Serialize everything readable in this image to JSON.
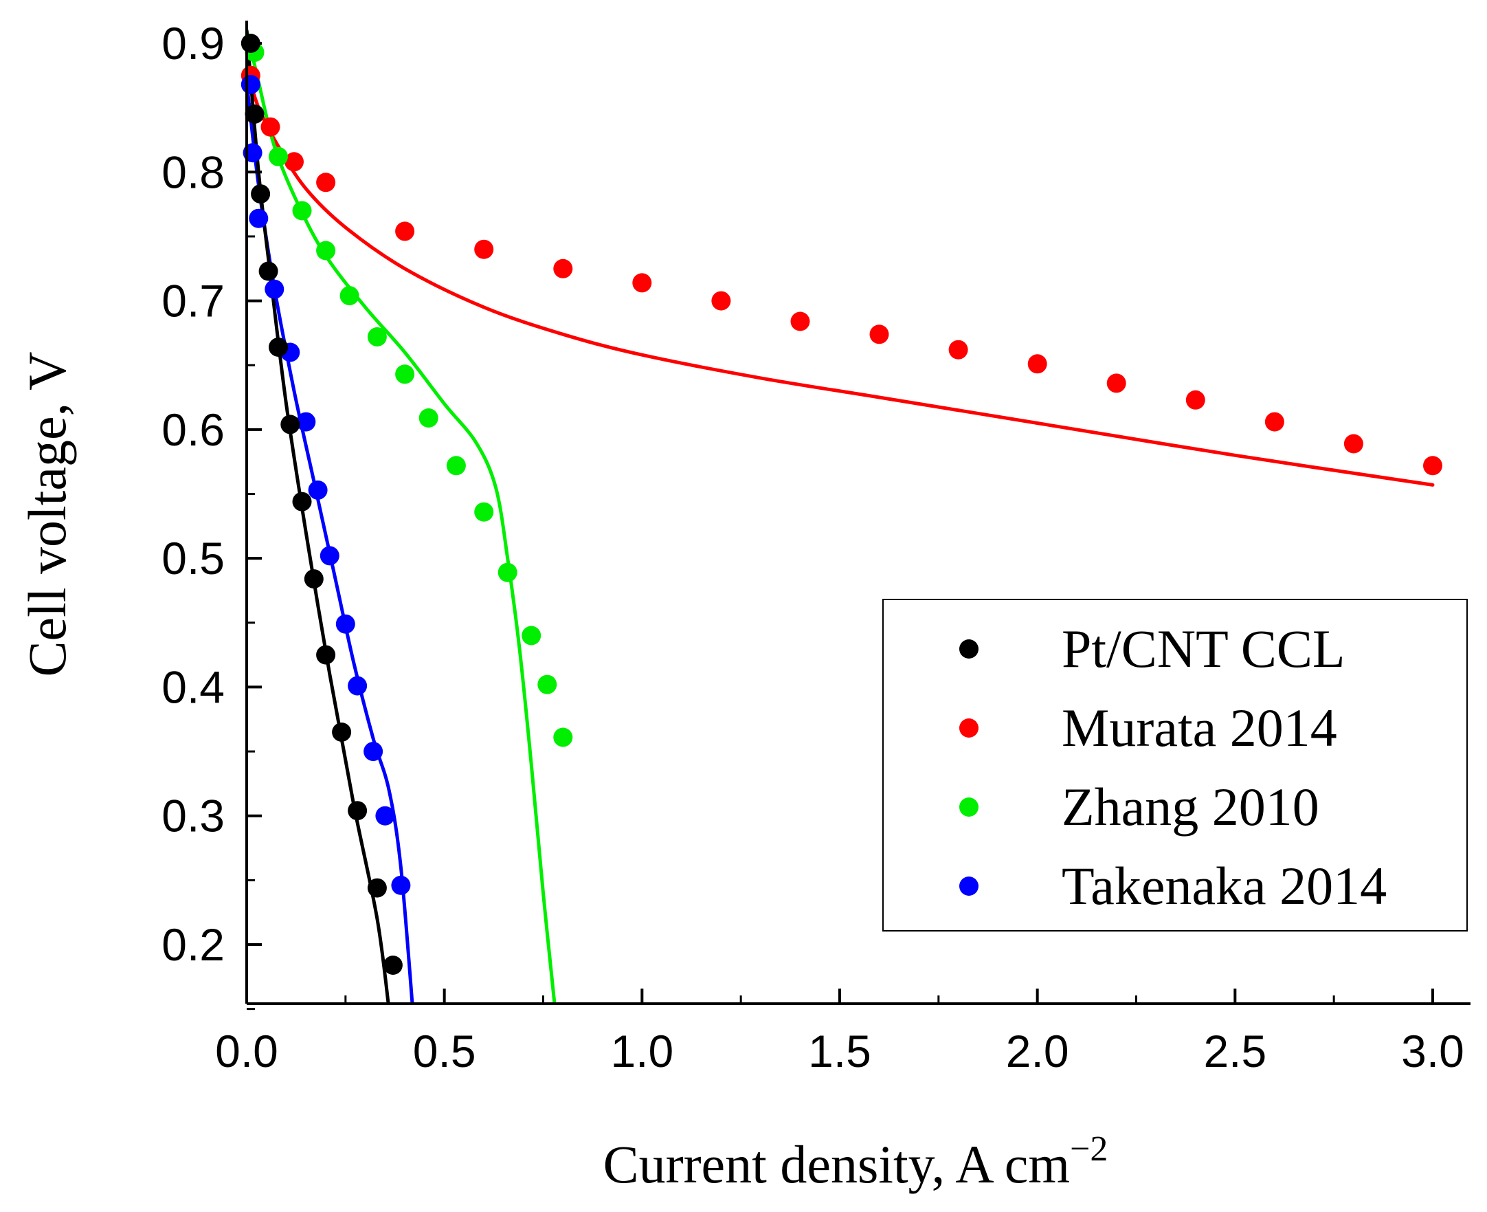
{
  "chart_data": {
    "type": "scatter",
    "title": "",
    "xlabel": "Current density, A cm",
    "xlabel_superscript": "−2",
    "ylabel": "Cell voltage, V",
    "xlim": [
      0.0,
      3.1
    ],
    "ylim": [
      0.15,
      0.91
    ],
    "xticks": [
      0.0,
      0.5,
      1.0,
      1.5,
      2.0,
      2.5,
      3.0
    ],
    "xtick_labels": [
      "0.0",
      "0.5",
      "1.0",
      "1.5",
      "2.0",
      "2.5",
      "3.0"
    ],
    "yticks": [
      0.2,
      0.3,
      0.4,
      0.5,
      0.6,
      0.7,
      0.8,
      0.9
    ],
    "ytick_labels": [
      "0.2",
      "0.3",
      "0.4",
      "0.5",
      "0.6",
      "0.7",
      "0.8",
      "0.9"
    ],
    "legend_position": "right",
    "series": [
      {
        "name": "Pt/CNT CCL",
        "color": "#000000",
        "points": [
          [
            0.01,
            0.9
          ],
          [
            0.02,
            0.845
          ],
          [
            0.035,
            0.783
          ],
          [
            0.055,
            0.723
          ],
          [
            0.08,
            0.664
          ],
          [
            0.11,
            0.604
          ],
          [
            0.14,
            0.544
          ],
          [
            0.17,
            0.484
          ],
          [
            0.2,
            0.425
          ],
          [
            0.24,
            0.365
          ],
          [
            0.28,
            0.304
          ],
          [
            0.33,
            0.244
          ],
          [
            0.37,
            0.184
          ]
        ],
        "fit": [
          [
            0.0,
            0.91
          ],
          [
            0.03,
            0.8
          ],
          [
            0.06,
            0.72
          ],
          [
            0.1,
            0.62
          ],
          [
            0.15,
            0.52
          ],
          [
            0.21,
            0.41
          ],
          [
            0.27,
            0.31
          ],
          [
            0.33,
            0.22
          ],
          [
            0.36,
            0.15
          ]
        ]
      },
      {
        "name": "Murata 2014",
        "color": "#ff0000",
        "points": [
          [
            0.01,
            0.875
          ],
          [
            0.06,
            0.835
          ],
          [
            0.12,
            0.808
          ],
          [
            0.2,
            0.792
          ],
          [
            0.4,
            0.754
          ],
          [
            0.6,
            0.74
          ],
          [
            0.8,
            0.725
          ],
          [
            1.0,
            0.714
          ],
          [
            1.2,
            0.7
          ],
          [
            1.4,
            0.684
          ],
          [
            1.6,
            0.674
          ],
          [
            1.8,
            0.662
          ],
          [
            2.0,
            0.651
          ],
          [
            2.2,
            0.636
          ],
          [
            2.4,
            0.623
          ],
          [
            2.6,
            0.606
          ],
          [
            2.8,
            0.589
          ],
          [
            3.0,
            0.572
          ]
        ],
        "fit": [
          [
            0.0,
            0.88
          ],
          [
            0.03,
            0.85
          ],
          [
            0.08,
            0.82
          ],
          [
            0.15,
            0.787
          ],
          [
            0.25,
            0.757
          ],
          [
            0.4,
            0.725
          ],
          [
            0.6,
            0.695
          ],
          [
            0.8,
            0.674
          ],
          [
            1.0,
            0.658
          ],
          [
            1.3,
            0.64
          ],
          [
            1.6,
            0.625
          ],
          [
            2.0,
            0.605
          ],
          [
            2.5,
            0.58
          ],
          [
            3.0,
            0.557
          ]
        ]
      },
      {
        "name": "Zhang 2010",
        "color": "#00ee00",
        "points": [
          [
            0.02,
            0.893
          ],
          [
            0.08,
            0.812
          ],
          [
            0.14,
            0.77
          ],
          [
            0.2,
            0.739
          ],
          [
            0.26,
            0.704
          ],
          [
            0.33,
            0.672
          ],
          [
            0.4,
            0.643
          ],
          [
            0.46,
            0.609
          ],
          [
            0.53,
            0.572
          ],
          [
            0.6,
            0.536
          ],
          [
            0.66,
            0.489
          ],
          [
            0.72,
            0.44
          ],
          [
            0.76,
            0.402
          ],
          [
            0.8,
            0.361
          ]
        ],
        "fit": [
          [
            0.0,
            0.91
          ],
          [
            0.03,
            0.87
          ],
          [
            0.07,
            0.82
          ],
          [
            0.13,
            0.775
          ],
          [
            0.2,
            0.735
          ],
          [
            0.3,
            0.695
          ],
          [
            0.4,
            0.66
          ],
          [
            0.5,
            0.62
          ],
          [
            0.58,
            0.59
          ],
          [
            0.63,
            0.555
          ],
          [
            0.66,
            0.5
          ],
          [
            0.69,
            0.43
          ],
          [
            0.72,
            0.34
          ],
          [
            0.75,
            0.24
          ],
          [
            0.78,
            0.15
          ]
        ]
      },
      {
        "name": "Takenaka 2014",
        "color": "#0000ff",
        "points": [
          [
            0.01,
            0.868
          ],
          [
            0.015,
            0.815
          ],
          [
            0.03,
            0.764
          ],
          [
            0.07,
            0.709
          ],
          [
            0.11,
            0.66
          ],
          [
            0.15,
            0.606
          ],
          [
            0.18,
            0.553
          ],
          [
            0.21,
            0.502
          ],
          [
            0.25,
            0.449
          ],
          [
            0.28,
            0.401
          ],
          [
            0.32,
            0.35
          ],
          [
            0.35,
            0.3
          ],
          [
            0.39,
            0.246
          ]
        ],
        "fit": [
          [
            0.0,
            0.87
          ],
          [
            0.03,
            0.79
          ],
          [
            0.07,
            0.71
          ],
          [
            0.12,
            0.63
          ],
          [
            0.17,
            0.56
          ],
          [
            0.22,
            0.49
          ],
          [
            0.27,
            0.42
          ],
          [
            0.32,
            0.36
          ],
          [
            0.36,
            0.32
          ],
          [
            0.39,
            0.26
          ],
          [
            0.42,
            0.15
          ]
        ]
      }
    ]
  }
}
